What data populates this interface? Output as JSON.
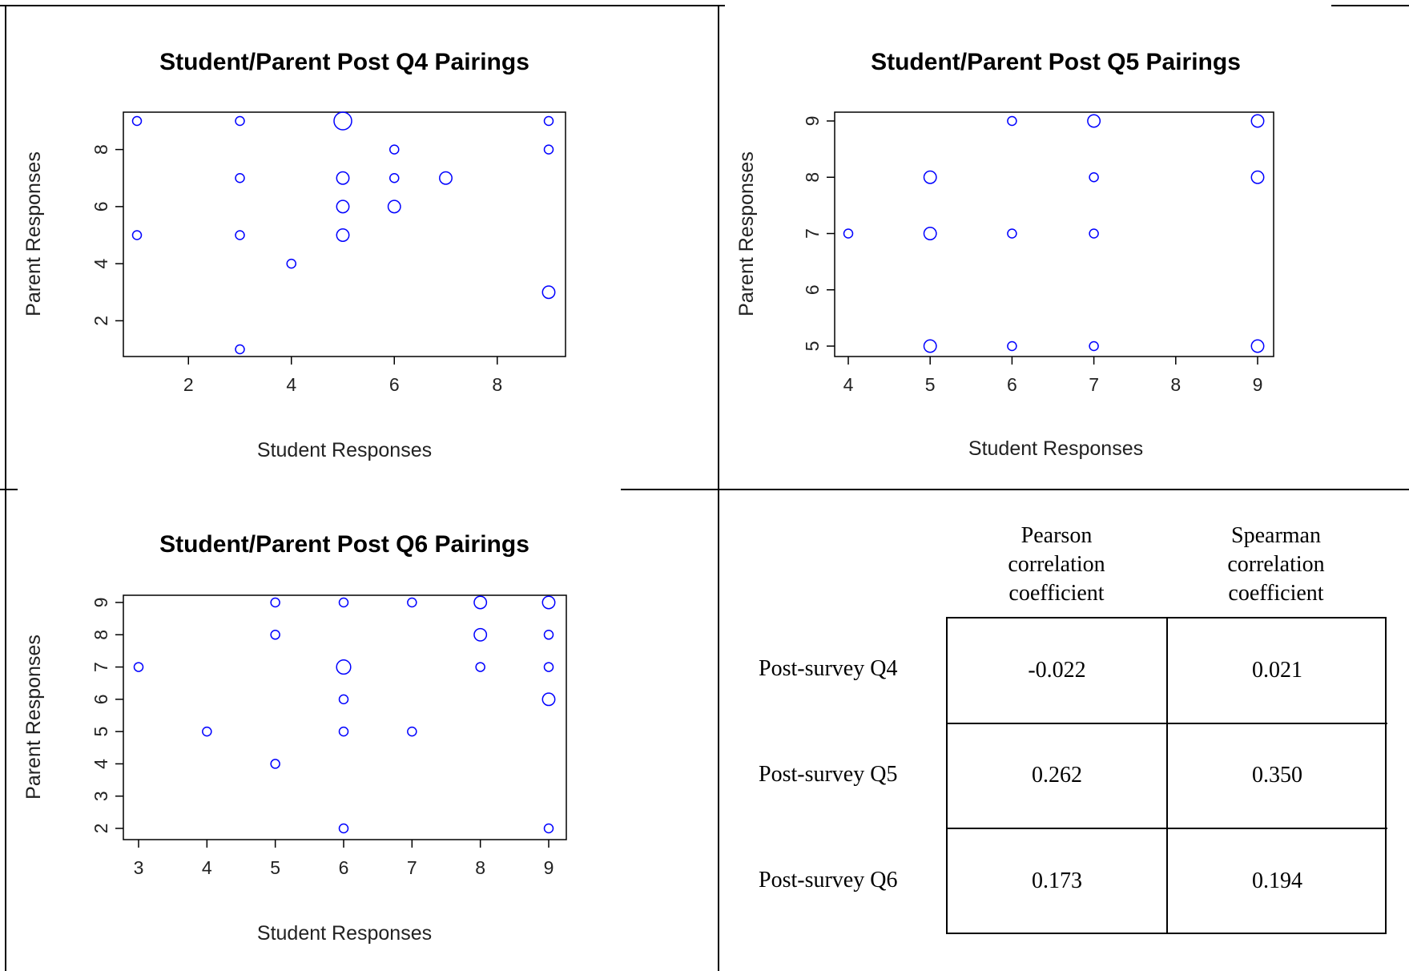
{
  "chart_data": [
    {
      "type": "scatter",
      "title": "Student/Parent Post Q4 Pairings",
      "xlabel": "Student Responses",
      "ylabel": "Parent Responses",
      "xlim": [
        1,
        9
      ],
      "ylim": [
        1,
        9
      ],
      "xticks": [
        2,
        4,
        6,
        8
      ],
      "yticks": [
        2,
        4,
        6,
        8
      ],
      "color": "#0000ff",
      "points": [
        {
          "x": 1,
          "y": 9,
          "size": 1
        },
        {
          "x": 3,
          "y": 9,
          "size": 1
        },
        {
          "x": 5,
          "y": 9,
          "size": 2
        },
        {
          "x": 9,
          "y": 9,
          "size": 1
        },
        {
          "x": 6,
          "y": 8,
          "size": 1
        },
        {
          "x": 9,
          "y": 8,
          "size": 1
        },
        {
          "x": 3,
          "y": 7,
          "size": 1
        },
        {
          "x": 5,
          "y": 7,
          "size": 1.4
        },
        {
          "x": 6,
          "y": 7,
          "size": 1
        },
        {
          "x": 7,
          "y": 7,
          "size": 1.4
        },
        {
          "x": 5,
          "y": 6,
          "size": 1.4
        },
        {
          "x": 6,
          "y": 6,
          "size": 1.4
        },
        {
          "x": 1,
          "y": 5,
          "size": 1
        },
        {
          "x": 3,
          "y": 5,
          "size": 1
        },
        {
          "x": 5,
          "y": 5,
          "size": 1.4
        },
        {
          "x": 4,
          "y": 4,
          "size": 1
        },
        {
          "x": 9,
          "y": 3,
          "size": 1.4
        },
        {
          "x": 3,
          "y": 1,
          "size": 1
        }
      ]
    },
    {
      "type": "scatter",
      "title": "Student/Parent Post Q5 Pairings",
      "xlabel": "Student Responses",
      "ylabel": "Parent Responses",
      "xlim": [
        4,
        9
      ],
      "ylim": [
        5,
        9
      ],
      "xticks": [
        4,
        5,
        6,
        7,
        8,
        9
      ],
      "yticks": [
        5,
        6,
        7,
        8,
        9
      ],
      "color": "#0000ff",
      "points": [
        {
          "x": 6,
          "y": 9,
          "size": 1
        },
        {
          "x": 7,
          "y": 9,
          "size": 1.4
        },
        {
          "x": 9,
          "y": 9,
          "size": 1.4
        },
        {
          "x": 5,
          "y": 8,
          "size": 1.4
        },
        {
          "x": 7,
          "y": 8,
          "size": 1
        },
        {
          "x": 9,
          "y": 8,
          "size": 1.4
        },
        {
          "x": 4,
          "y": 7,
          "size": 1
        },
        {
          "x": 5,
          "y": 7,
          "size": 1.4
        },
        {
          "x": 6,
          "y": 7,
          "size": 1
        },
        {
          "x": 7,
          "y": 7,
          "size": 1
        },
        {
          "x": 5,
          "y": 5,
          "size": 1.4
        },
        {
          "x": 6,
          "y": 5,
          "size": 1
        },
        {
          "x": 7,
          "y": 5,
          "size": 1
        },
        {
          "x": 9,
          "y": 5,
          "size": 1.4
        }
      ]
    },
    {
      "type": "scatter",
      "title": "Student/Parent Post Q6 Pairings",
      "xlabel": "Student Responses",
      "ylabel": "Parent Responses",
      "xlim": [
        3,
        9
      ],
      "ylim": [
        2,
        9
      ],
      "xticks": [
        3,
        4,
        5,
        6,
        7,
        8,
        9
      ],
      "yticks": [
        2,
        3,
        4,
        5,
        6,
        7,
        8,
        9
      ],
      "color": "#0000ff",
      "points": [
        {
          "x": 5,
          "y": 9,
          "size": 1
        },
        {
          "x": 6,
          "y": 9,
          "size": 1
        },
        {
          "x": 7,
          "y": 9,
          "size": 1
        },
        {
          "x": 8,
          "y": 9,
          "size": 1.4
        },
        {
          "x": 9,
          "y": 9,
          "size": 1.4
        },
        {
          "x": 5,
          "y": 8,
          "size": 1
        },
        {
          "x": 8,
          "y": 8,
          "size": 1.4
        },
        {
          "x": 9,
          "y": 8,
          "size": 1
        },
        {
          "x": 3,
          "y": 7,
          "size": 1
        },
        {
          "x": 6,
          "y": 7,
          "size": 1.6
        },
        {
          "x": 8,
          "y": 7,
          "size": 1
        },
        {
          "x": 9,
          "y": 7,
          "size": 1
        },
        {
          "x": 6,
          "y": 6,
          "size": 1
        },
        {
          "x": 9,
          "y": 6,
          "size": 1.4
        },
        {
          "x": 4,
          "y": 5,
          "size": 1
        },
        {
          "x": 6,
          "y": 5,
          "size": 1
        },
        {
          "x": 7,
          "y": 5,
          "size": 1
        },
        {
          "x": 5,
          "y": 4,
          "size": 1
        },
        {
          "x": 6,
          "y": 2,
          "size": 1
        },
        {
          "x": 9,
          "y": 2,
          "size": 1
        }
      ]
    },
    {
      "type": "table",
      "columns": [
        [
          "Pearson",
          "correlation",
          "coefficient"
        ],
        [
          "Spearman",
          "correlation",
          "coefficient"
        ]
      ],
      "rows": [
        {
          "label": "Post-survey Q4",
          "values": [
            "-0.022",
            "0.021"
          ]
        },
        {
          "label": "Post-survey Q5",
          "values": [
            "0.262",
            "0.350"
          ]
        },
        {
          "label": "Post-survey Q6",
          "values": [
            "0.173",
            "0.194"
          ]
        }
      ]
    }
  ]
}
